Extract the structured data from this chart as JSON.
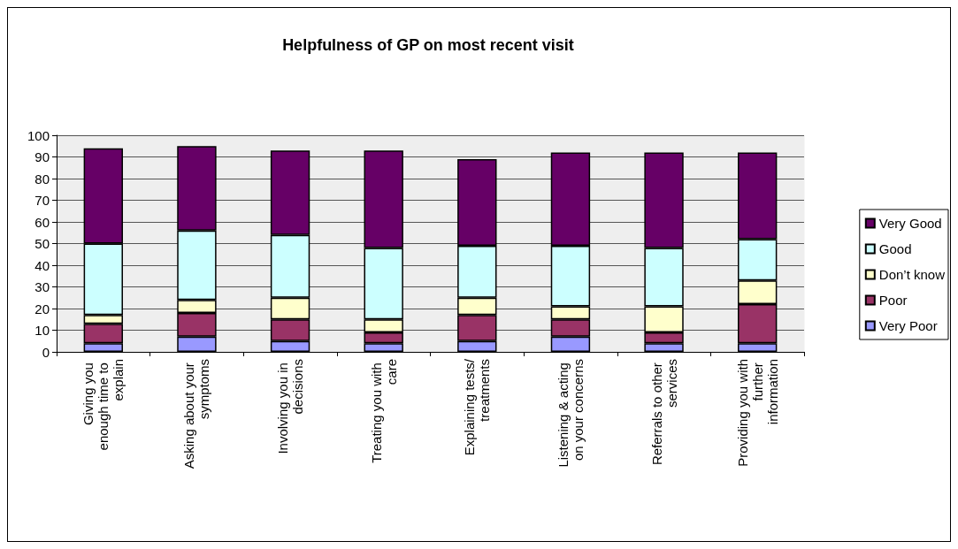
{
  "chart_data": {
    "type": "bar",
    "stacked": true,
    "title": "Helpfulness of GP on most recent visit",
    "categories": [
      "Giving you enough time to explain",
      "Asking about your symptoms",
      "Involving you in decisions",
      "Treating you with care",
      "Explaining tests/treatments",
      "Listening & acting on your concerns",
      "Referrals to other services",
      "Providing you with further information"
    ],
    "series": [
      {
        "name": "Very Poor",
        "color": "#9999ff",
        "values": [
          4,
          7,
          5,
          4,
          5,
          7,
          4,
          4
        ]
      },
      {
        "name": "Poor",
        "color": "#993366",
        "values": [
          9,
          11,
          10,
          5,
          12,
          8,
          5,
          18
        ]
      },
      {
        "name": "Don’t know",
        "color": "#ffffcc",
        "values": [
          4,
          6,
          10,
          6,
          8,
          6,
          12,
          11
        ]
      },
      {
        "name": "Good",
        "color": "#ccffff",
        "values": [
          33,
          32,
          29,
          33,
          24,
          28,
          27,
          19
        ]
      },
      {
        "name": "Very Good",
        "color": "#660066",
        "values": [
          44,
          39,
          39,
          45,
          40,
          43,
          44,
          40
        ]
      }
    ],
    "ylim": [
      0,
      100
    ],
    "yticks": [
      0,
      10,
      20,
      30,
      40,
      50,
      60,
      70,
      80,
      90,
      100
    ],
    "grid": "y",
    "legend": "right"
  }
}
